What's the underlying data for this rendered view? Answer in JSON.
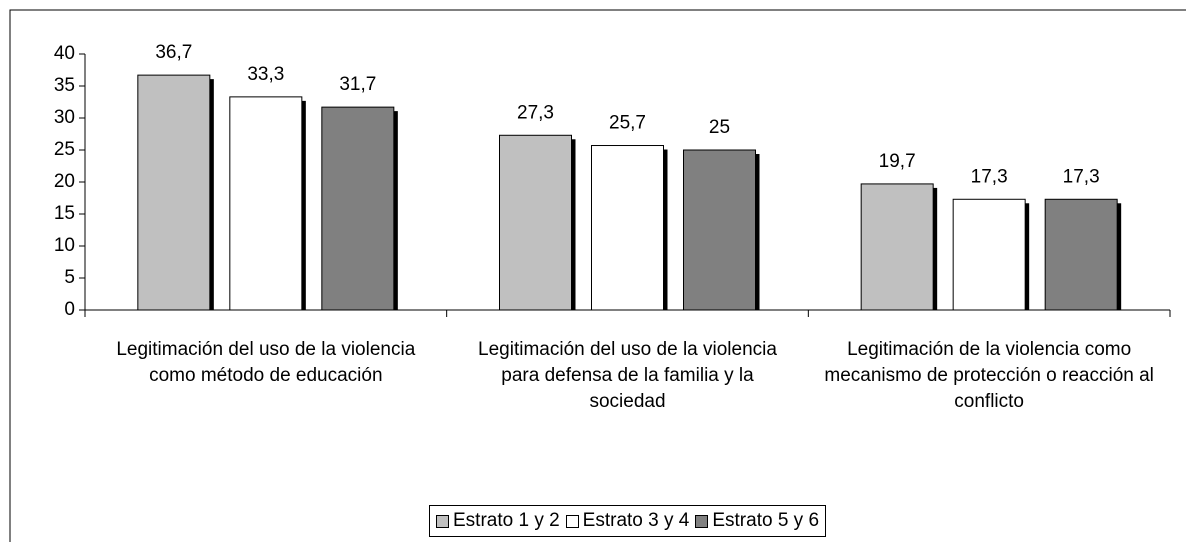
{
  "chart_data": {
    "type": "bar",
    "categories": [
      "Legitimación del uso de la violencia como método de educación",
      "Legitimación del uso de la violencia para defensa de la familia y la sociedad",
      "Legitimación de la violencia como mecanismo de protección o reacción al conflicto"
    ],
    "series": [
      {
        "name": "Estrato 1 y 2",
        "color": "#c0c0c0",
        "values": [
          36.7,
          27.3,
          19.7
        ],
        "value_labels": [
          "36,7",
          "27,3",
          "19,7"
        ]
      },
      {
        "name": "Estrato 3 y 4",
        "color": "#ffffff",
        "values": [
          33.3,
          25.7,
          17.3
        ],
        "value_labels": [
          "33,3",
          "25,7",
          "17,3"
        ]
      },
      {
        "name": "Estrato 5 y 6",
        "color": "#808080",
        "values": [
          31.7,
          25,
          17.3
        ],
        "value_labels": [
          "31,7",
          "25",
          "17,3"
        ]
      }
    ],
    "ylim": [
      0,
      40
    ],
    "yticks": [
      0,
      5,
      10,
      15,
      20,
      25,
      30,
      35,
      40
    ],
    "grid": false,
    "legend": "bottom"
  }
}
